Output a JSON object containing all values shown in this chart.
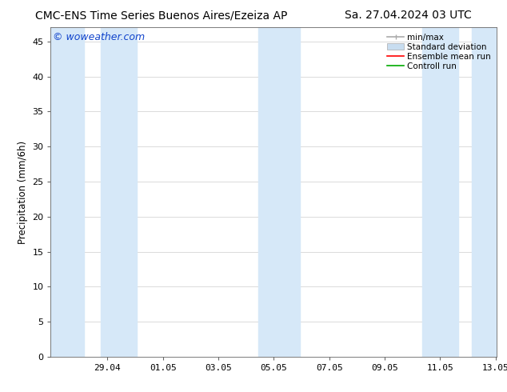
{
  "title_left": "CMC-ENS Time Series Buenos Aires/Ezeiza AP",
  "title_right": "Sa. 27.04.2024 03 UTC",
  "ylabel": "Precipitation (mm/6h)",
  "watermark": "© woweather.com",
  "ylim": [
    0,
    47
  ],
  "yticks": [
    0,
    5,
    10,
    15,
    20,
    25,
    30,
    35,
    40,
    45
  ],
  "xtick_labels": [
    "29.04",
    "01.05",
    "03.05",
    "05.05",
    "07.05",
    "09.05",
    "11.05",
    "13.05"
  ],
  "shade_color": "#d6e8f8",
  "legend_labels": [
    "min/max",
    "Standard deviation",
    "Ensemble mean run",
    "Controll run"
  ],
  "legend_colors_line": [
    "#aaaaaa",
    "#bbccdd",
    "#ff0000",
    "#008800"
  ],
  "background_color": "#ffffff",
  "grid_color": "#cccccc",
  "title_fontsize": 10,
  "ylabel_fontsize": 8.5,
  "tick_fontsize": 8,
  "watermark_fontsize": 9,
  "legend_fontsize": 7.5
}
